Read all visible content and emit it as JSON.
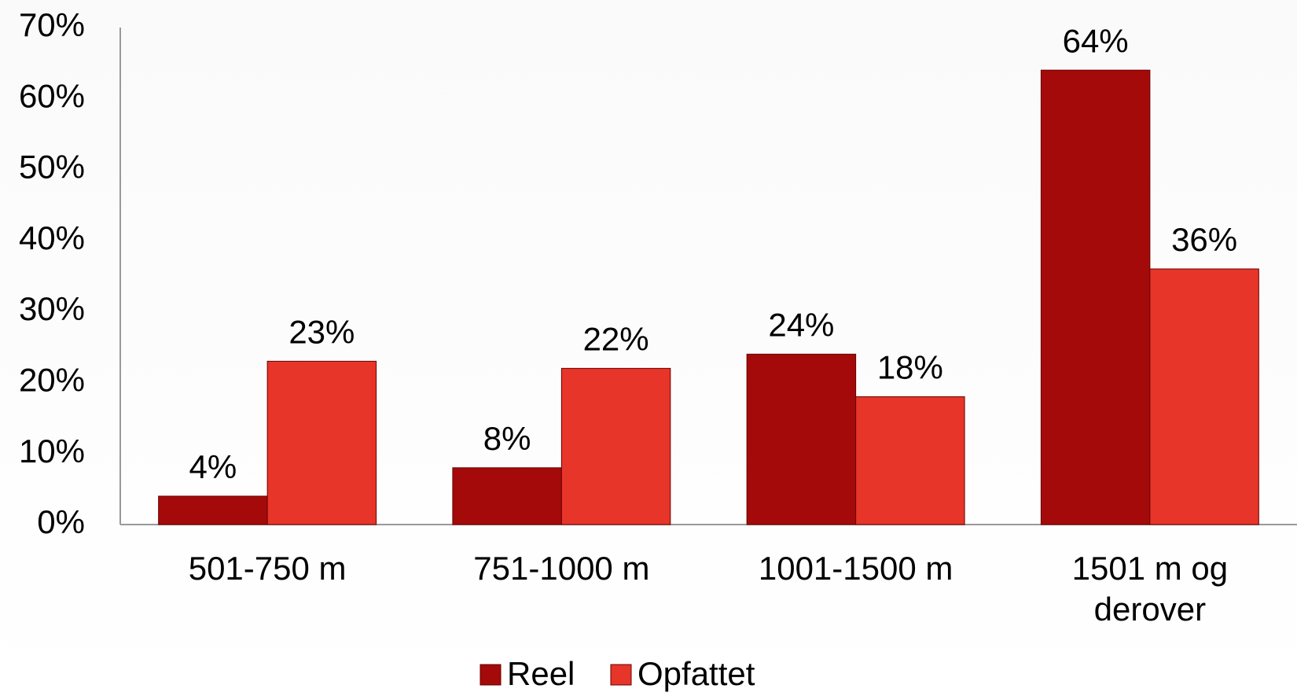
{
  "chart_data": {
    "type": "bar",
    "categories": [
      "501-750 m",
      "751-1000 m",
      "1001-1500 m",
      "1501 m og derover"
    ],
    "series": [
      {
        "name": "Reel",
        "color": "#a50a0a",
        "values": [
          4,
          8,
          24,
          64
        ],
        "value_labels": [
          "4%",
          "8%",
          "24%",
          "64%"
        ]
      },
      {
        "name": "Opfattet",
        "color": "#e8352a",
        "values": [
          23,
          22,
          18,
          36
        ],
        "value_labels": [
          "23%",
          "22%",
          "18%",
          "36%"
        ]
      }
    ],
    "ylim": [
      0,
      70
    ],
    "yticks": [
      {
        "value": 0,
        "label": "0%"
      },
      {
        "value": 10,
        "label": "10%"
      },
      {
        "value": 20,
        "label": "20%"
      },
      {
        "value": 30,
        "label": "30%"
      },
      {
        "value": 40,
        "label": "40%"
      },
      {
        "value": 50,
        "label": "50%"
      },
      {
        "value": 60,
        "label": "60%"
      },
      {
        "value": 70,
        "label": "70%"
      }
    ],
    "grid": false,
    "legend": "bottom"
  }
}
